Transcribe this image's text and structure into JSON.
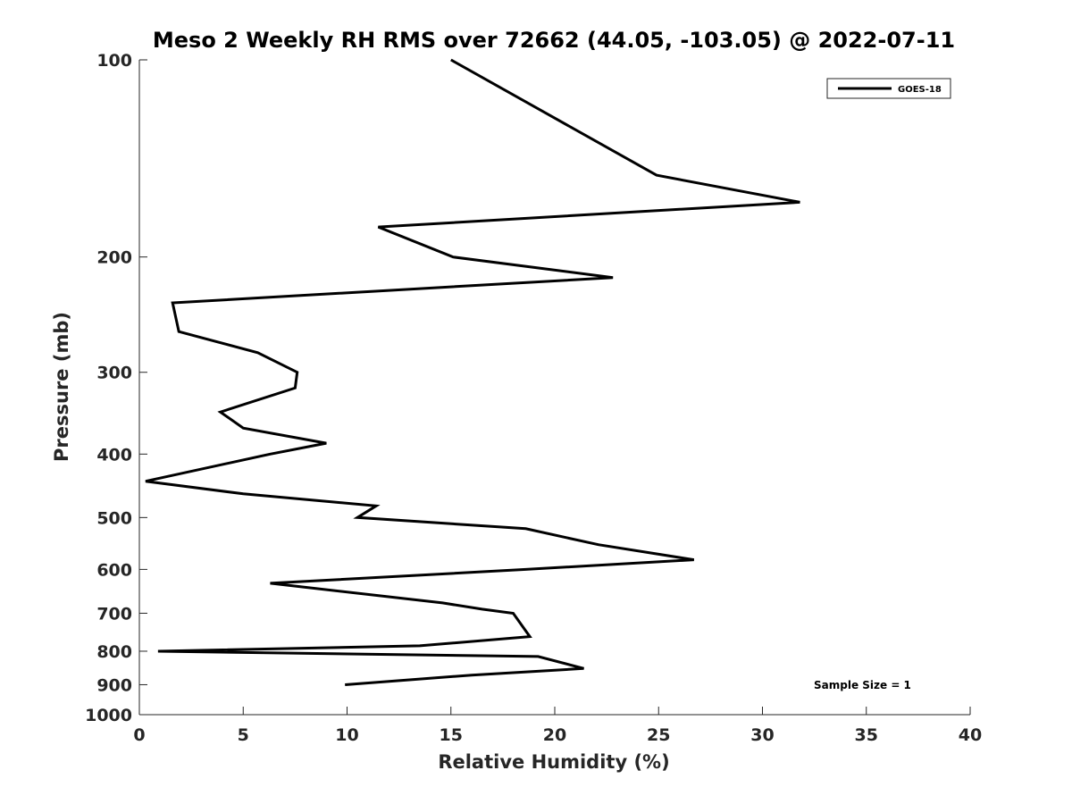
{
  "chart_data": {
    "type": "line",
    "title": "Meso 2 Weekly RH RMS over 72662 (44.05, -103.05) @ 2022-07-11",
    "xlabel": "Relative Humidity (%)",
    "ylabel": "Pressure (mb)",
    "xlim": [
      0,
      40
    ],
    "ylim": [
      100,
      1000
    ],
    "y_scale": "log",
    "y_reversed": true,
    "x_ticks": [
      0,
      5,
      10,
      15,
      20,
      25,
      30,
      35,
      40
    ],
    "y_ticks": [
      100,
      200,
      300,
      400,
      500,
      600,
      700,
      800,
      900,
      1000
    ],
    "grid": false,
    "legend_position": "top-right",
    "annotation": "Sample Size = 1",
    "series": [
      {
        "name": "GOES-18",
        "color": "#000000",
        "points": [
          {
            "p": 100,
            "rh": 15.0
          },
          {
            "p": 150,
            "rh": 24.9
          },
          {
            "p": 165,
            "rh": 31.8
          },
          {
            "p": 180,
            "rh": 11.5
          },
          {
            "p": 200,
            "rh": 15.1
          },
          {
            "p": 215,
            "rh": 22.8
          },
          {
            "p": 235,
            "rh": 1.6
          },
          {
            "p": 260,
            "rh": 1.9
          },
          {
            "p": 280,
            "rh": 5.7
          },
          {
            "p": 300,
            "rh": 7.6
          },
          {
            "p": 317,
            "rh": 7.5
          },
          {
            "p": 345,
            "rh": 3.9
          },
          {
            "p": 365,
            "rh": 5.0
          },
          {
            "p": 385,
            "rh": 9.0
          },
          {
            "p": 400,
            "rh": 6.3
          },
          {
            "p": 440,
            "rh": 0.3
          },
          {
            "p": 460,
            "rh": 5.0
          },
          {
            "p": 480,
            "rh": 11.4
          },
          {
            "p": 500,
            "rh": 10.5
          },
          {
            "p": 520,
            "rh": 18.6
          },
          {
            "p": 550,
            "rh": 22.1
          },
          {
            "p": 580,
            "rh": 26.7
          },
          {
            "p": 600,
            "rh": 18.6
          },
          {
            "p": 630,
            "rh": 6.3
          },
          {
            "p": 675,
            "rh": 14.6
          },
          {
            "p": 690,
            "rh": 16.5
          },
          {
            "p": 700,
            "rh": 18.0
          },
          {
            "p": 760,
            "rh": 18.8
          },
          {
            "p": 785,
            "rh": 13.5
          },
          {
            "p": 800,
            "rh": 0.9
          },
          {
            "p": 815,
            "rh": 19.2
          },
          {
            "p": 850,
            "rh": 21.4
          },
          {
            "p": 870,
            "rh": 16.0
          },
          {
            "p": 900,
            "rh": 9.9
          }
        ]
      }
    ]
  }
}
